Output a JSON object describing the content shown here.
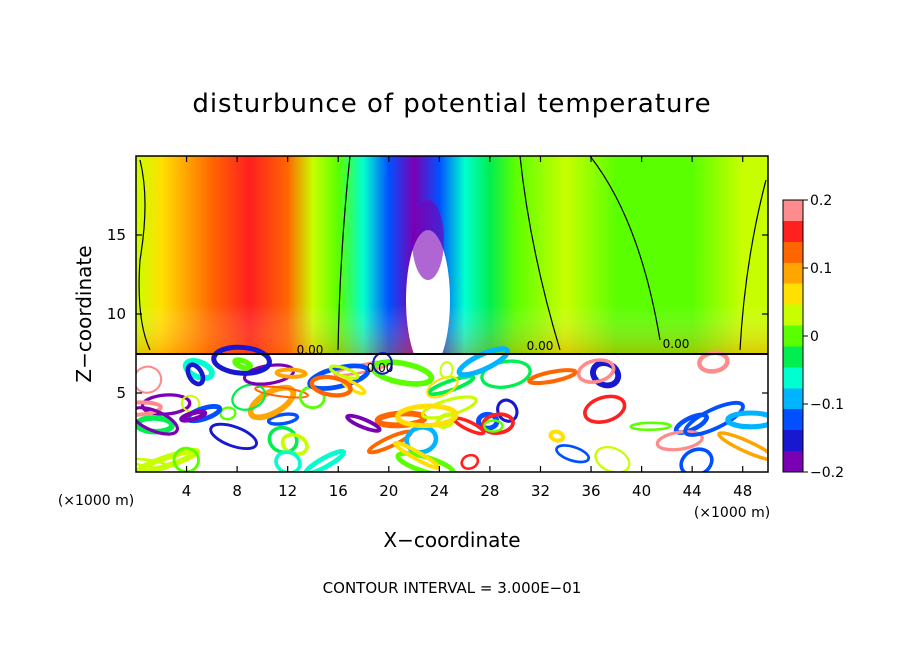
{
  "chart_data": {
    "type": "heatmap",
    "title": "disturbunce of potential temperature",
    "xlabel": "X−coordinate",
    "ylabel": "Z−coordinate",
    "x_unit": "(×1000 m)",
    "x_unit_right": "(×1000 m)",
    "xlim": [
      0,
      50
    ],
    "ylim": [
      0,
      20
    ],
    "x_ticks": [
      4,
      8,
      12,
      16,
      20,
      24,
      28,
      32,
      36,
      40,
      44,
      48
    ],
    "y_ticks": [
      5,
      10,
      15
    ],
    "footer": "CONTOUR INTERVAL = 3.000E−01",
    "contour_labels": [
      "0.00",
      "0.00",
      "0.00",
      "0.00"
    ],
    "colorbar": {
      "ticks": [
        "0.2",
        "0.1",
        "0",
        "−0.1",
        "−0.2"
      ],
      "colors": [
        "#ff8c8c",
        "#ff2020",
        "#ff6600",
        "#ffa500",
        "#ffe000",
        "#c8ff00",
        "#5aff00",
        "#00ee50",
        "#00ffd0",
        "#00b4ff",
        "#0050ff",
        "#1818d0",
        "#7a00b4"
      ],
      "range": [
        -0.2,
        0.2
      ]
    },
    "upper_layer_x_profile": [
      {
        "x": 0,
        "v": 0.02
      },
      {
        "x": 2,
        "v": 0.06
      },
      {
        "x": 4,
        "v": 0.1
      },
      {
        "x": 6,
        "v": 0.15
      },
      {
        "x": 9,
        "v": 0.17
      },
      {
        "x": 12,
        "v": 0.12
      },
      {
        "x": 14,
        "v": 0.05
      },
      {
        "x": 16,
        "v": 0.0
      },
      {
        "x": 18,
        "v": -0.08
      },
      {
        "x": 20,
        "v": -0.15
      },
      {
        "x": 22,
        "v": -0.2
      },
      {
        "x": 24,
        "v": -0.15
      },
      {
        "x": 26,
        "v": -0.08
      },
      {
        "x": 28,
        "v": -0.03
      },
      {
        "x": 30,
        "v": 0.0
      },
      {
        "x": 34,
        "v": 0.02
      },
      {
        "x": 38,
        "v": 0.01
      },
      {
        "x": 40,
        "v": -0.01
      },
      {
        "x": 44,
        "v": 0.0
      },
      {
        "x": 48,
        "v": 0.02
      },
      {
        "x": 50,
        "v": 0.03
      }
    ]
  }
}
